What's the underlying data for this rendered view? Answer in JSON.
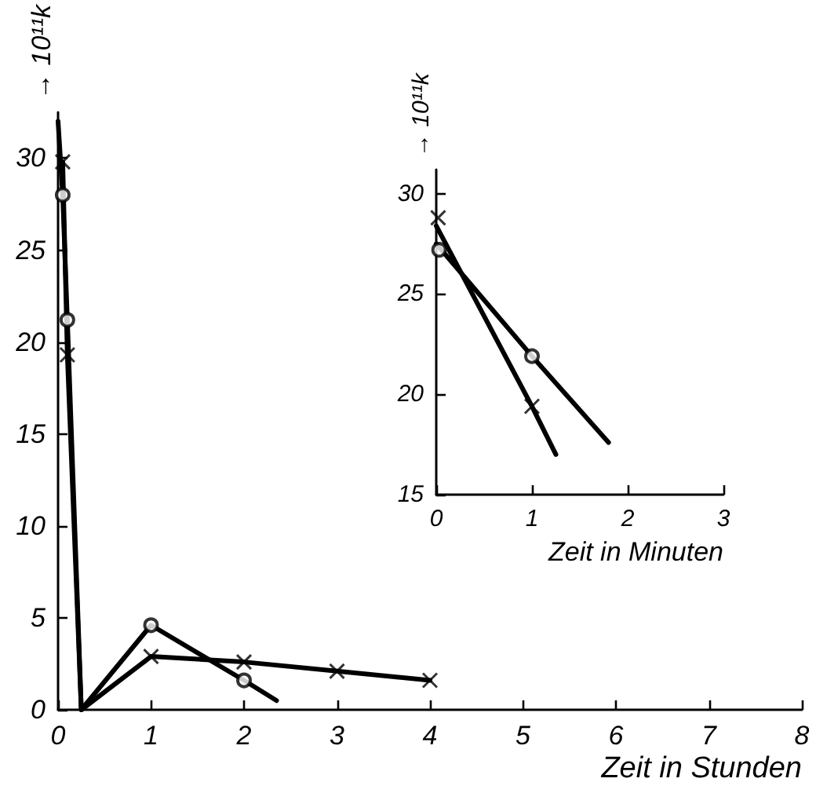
{
  "chart_data": [
    {
      "type": "line",
      "xlabel": "Zeit in Stunden",
      "ylabel": "→ 10¹¹k",
      "xlim": [
        0,
        8
      ],
      "xticks": [
        0,
        1,
        2,
        3,
        4,
        5,
        6,
        7,
        8
      ],
      "ylim": [
        0,
        32.5
      ],
      "yticks": [
        0,
        5,
        10,
        15,
        20,
        25,
        30
      ],
      "grid": false,
      "series": [
        {
          "type": "line",
          "marker": "none",
          "color": "#000000",
          "x": [
            0,
            0.05,
            0.1,
            0.25,
            1,
            2,
            2.35
          ],
          "values": [
            32,
            28,
            21.2,
            0,
            4.6,
            1.6,
            0.5
          ]
        },
        {
          "type": "scatter",
          "marker": "circle",
          "color": "#000000",
          "x": [
            0.05,
            0.1,
            1,
            2
          ],
          "values": [
            28,
            21.2,
            4.6,
            1.6
          ]
        },
        {
          "type": "line",
          "marker": "none",
          "color": "#000000",
          "x": [
            0.05,
            0.1,
            0.25,
            1,
            2,
            3,
            4
          ],
          "values": [
            29.8,
            19.3,
            0,
            2.9,
            2.6,
            2.1,
            1.6
          ]
        },
        {
          "type": "scatter",
          "marker": "cross",
          "color": "#000000",
          "x": [
            0.05,
            0.1,
            1,
            2,
            3,
            4
          ],
          "values": [
            29.8,
            19.3,
            2.9,
            2.6,
            2.1,
            1.6
          ]
        }
      ]
    },
    {
      "type": "line",
      "xlabel": "Zeit in Minuten",
      "ylabel": "→ 10¹¹k",
      "xlim": [
        0,
        3
      ],
      "xticks": [
        0,
        1,
        2,
        3
      ],
      "ylim": [
        15,
        31.2
      ],
      "yticks": [
        15,
        20,
        25,
        30
      ],
      "grid": false,
      "series": [
        {
          "type": "line",
          "marker": "none",
          "color": "#000000",
          "x": [
            0,
            1,
            1.8
          ],
          "values": [
            27.5,
            21.9,
            17.6
          ]
        },
        {
          "type": "scatter",
          "marker": "circle",
          "color": "#000000",
          "x": [
            0.03,
            1
          ],
          "values": [
            27.2,
            21.9
          ]
        },
        {
          "type": "line",
          "marker": "none",
          "color": "#000000",
          "x": [
            0,
            1,
            1.25
          ],
          "values": [
            28.4,
            19.4,
            17.0
          ]
        },
        {
          "type": "scatter",
          "marker": "cross",
          "color": "#000000",
          "x": [
            0.02,
            1
          ],
          "values": [
            28.8,
            19.4
          ]
        }
      ]
    }
  ]
}
